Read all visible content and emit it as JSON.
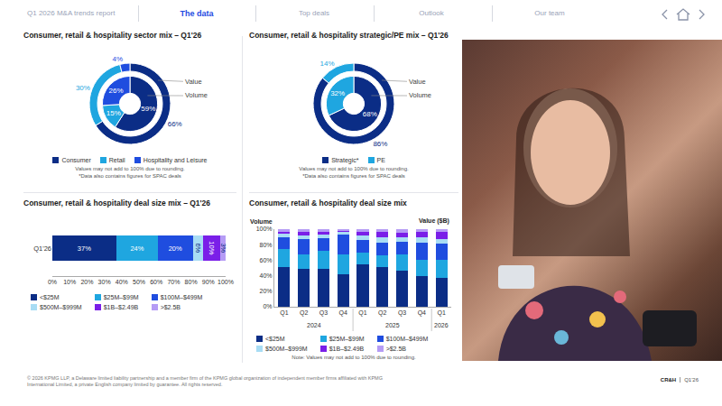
{
  "header": {
    "nav": [
      "Q1 2026 M&A trends report",
      "The data",
      "Top deals",
      "Outlook",
      "Our team"
    ],
    "active": "The data"
  },
  "chart_data": [
    {
      "type": "donut",
      "title": "Consumer, retail & hospitality sector mix – Q1'26",
      "categories": [
        "Consumer",
        "Retail",
        "Hospitality and Leisure"
      ],
      "colors": [
        "#0b2d86",
        "#1fa6e0",
        "#1f4ddf"
      ],
      "series": [
        {
          "name": "Value",
          "values": [
            66,
            30,
            4
          ],
          "value_labels": [
            "66%",
            "30%",
            "4%"
          ]
        },
        {
          "name": "Volume",
          "values": [
            59,
            15,
            26
          ],
          "value_labels": [
            "59%",
            "15%",
            "26%"
          ]
        }
      ],
      "data_labels": true,
      "legend": "bottom",
      "notes": [
        "Values may not add to 100% due to rounding.",
        "*Data also contains figures for SPAC deals"
      ]
    },
    {
      "type": "donut",
      "title": "Consumer, retail & hospitality strategic/PE mix – Q1'26",
      "categories": [
        "Strategic*",
        "PE"
      ],
      "colors": [
        "#0b2d86",
        "#1fa6e0"
      ],
      "series": [
        {
          "name": "Value",
          "values": [
            86,
            14
          ],
          "value_labels": [
            "86%",
            "14%"
          ]
        },
        {
          "name": "Volume",
          "values": [
            68,
            32
          ],
          "value_labels": [
            "68%",
            "32%"
          ]
        }
      ],
      "data_labels": true,
      "legend": "bottom",
      "notes": [
        "Values may not add to 100% due to rounding.",
        "*Data also contains figures for SPAC deals"
      ]
    },
    {
      "type": "bar",
      "orientation": "horizontal",
      "stacked": true,
      "title": "Consumer, retail & hospitality deal size mix – Q1'26",
      "categories": [
        "Q1'26"
      ],
      "series": [
        {
          "name": "<$25M",
          "color": "#0b2d86",
          "values": [
            37
          ],
          "value_labels": [
            "37%"
          ]
        },
        {
          "name": "$25M–$99M",
          "color": "#1fa6e0",
          "values": [
            24
          ],
          "value_labels": [
            "24%"
          ]
        },
        {
          "name": "$100M–$499M",
          "color": "#1f4ddf",
          "values": [
            20
          ],
          "value_labels": [
            "20%"
          ]
        },
        {
          "name": "$500M–$999M",
          "color": "#a8dcf4",
          "values": [
            6
          ],
          "value_labels": [
            "6%"
          ]
        },
        {
          "name": "$1B–$2.49B",
          "color": "#7a1fe8",
          "values": [
            10
          ],
          "value_labels": [
            "10%"
          ]
        },
        {
          "name": ">$2.5B",
          "color": "#b59cf5",
          "values": [
            3
          ],
          "value_labels": [
            "3%"
          ]
        }
      ],
      "xlim": [
        0,
        100
      ],
      "xticks": [
        {
          "value": 0,
          "label": "0%"
        },
        {
          "value": 10,
          "label": "10%"
        },
        {
          "value": 20,
          "label": "20%"
        },
        {
          "value": 30,
          "label": "30%"
        },
        {
          "value": 40,
          "label": "40%"
        },
        {
          "value": 50,
          "label": "50%"
        },
        {
          "value": 60,
          "label": "60%"
        },
        {
          "value": 70,
          "label": "70%"
        },
        {
          "value": 80,
          "label": "80%"
        },
        {
          "value": 90,
          "label": "90%"
        },
        {
          "value": 100,
          "label": "100%"
        }
      ],
      "data_labels": true,
      "grid": false,
      "legend": "bottom"
    },
    {
      "type": "bar",
      "stacked": true,
      "title": "Consumer, retail & hospitality deal size mix",
      "annotations": [
        "Volume",
        "Value ($B)"
      ],
      "categories": [
        "Q1",
        "Q2",
        "Q3",
        "Q4",
        "Q1",
        "Q2",
        "Q3",
        "Q4",
        "Q1"
      ],
      "groups": [
        "2024",
        "2024",
        "2024",
        "2024",
        "2025",
        "2025",
        "2025",
        "2025",
        "2026"
      ],
      "series": [
        {
          "name": "<$25M",
          "color": "#0b2d86",
          "values": [
            51,
            49,
            49,
            42,
            55,
            51,
            47,
            40,
            37
          ]
        },
        {
          "name": "$25M–$99M",
          "color": "#1fa6e0",
          "values": [
            24,
            19,
            23,
            25,
            15,
            15,
            21,
            21,
            24
          ]
        },
        {
          "name": "$100M–$499M",
          "color": "#1f4ddf",
          "values": [
            14,
            19,
            16,
            26,
            16,
            17,
            16,
            21,
            20
          ]
        },
        {
          "name": "$500M–$999M",
          "color": "#a8dcf4",
          "values": [
            5,
            5,
            5,
            3,
            6,
            7,
            5,
            8,
            6
          ]
        },
        {
          "name": "$1B–$2.49B",
          "color": "#7a1fe8",
          "values": [
            3,
            4,
            4,
            2,
            4,
            6,
            6,
            6,
            10
          ]
        },
        {
          "name": ">$2.5B",
          "color": "#b59cf5",
          "values": [
            3,
            4,
            3,
            2,
            4,
            4,
            5,
            4,
            3
          ]
        }
      ],
      "ylim": [
        0,
        100
      ],
      "yticks": [
        {
          "value": 0,
          "label": "0%"
        },
        {
          "value": 20,
          "label": "20%"
        },
        {
          "value": 40,
          "label": "40%"
        },
        {
          "value": 60,
          "label": "60%"
        },
        {
          "value": 80,
          "label": "80%"
        },
        {
          "value": 100,
          "label": "100%"
        }
      ],
      "grid": false,
      "legend": "bottom",
      "notes": [
        "Note: Values may not add to 100% due to rounding."
      ]
    }
  ],
  "footer": {
    "copyright": "© 2026 KPMG LLP, a Delaware limited liability partnership and a member firm of the KPMG global organization of independent member firms affiliated with KPMG International Limited, a private English company limited by guarantee. All rights reserved.",
    "section": "CR&H",
    "period": "Q1'26"
  }
}
